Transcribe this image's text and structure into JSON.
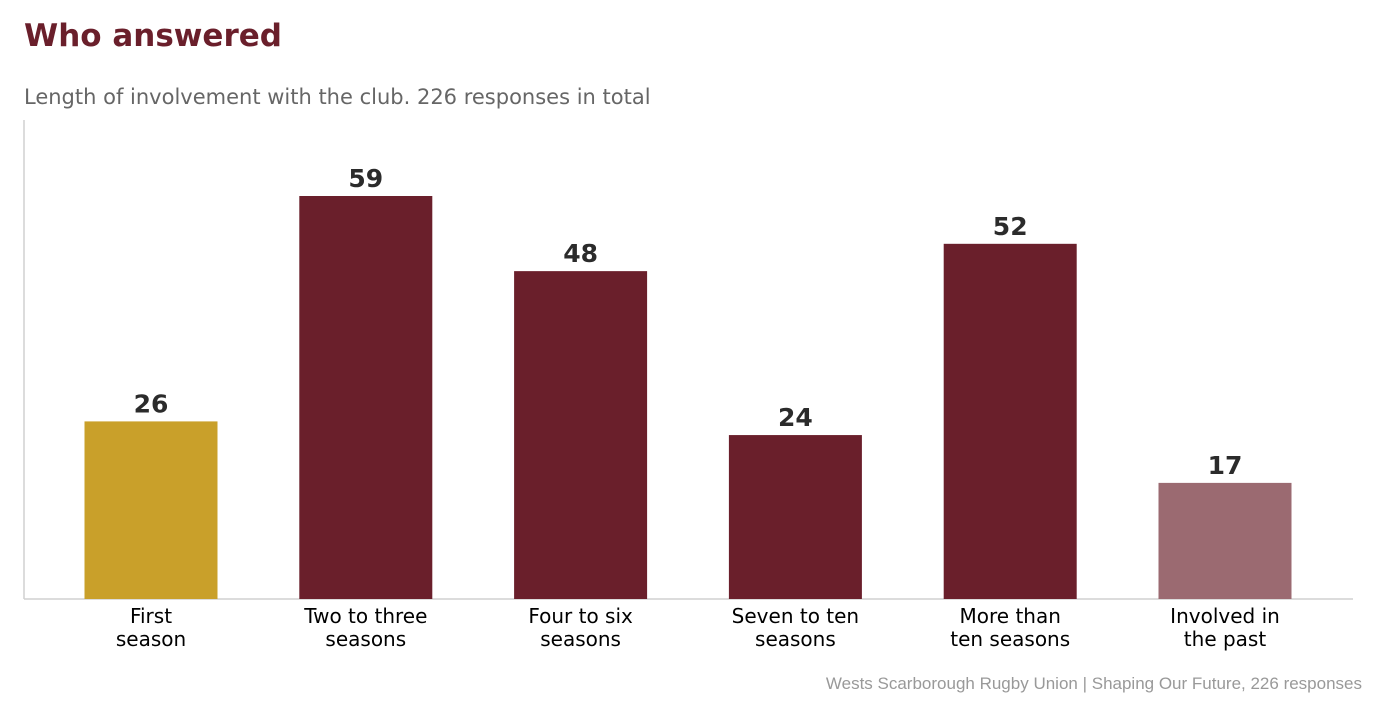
{
  "header": {
    "title": "Who answered",
    "subtitle": "Length of involvement with the club. 226 responses in total"
  },
  "footer": {
    "source": "Wests Scarborough Rugby Union  |  Shaping Our Future, 226 responses"
  },
  "chart_data": {
    "type": "bar",
    "title": "Who answered",
    "subtitle": "Length of involvement with the club. 226 responses in total",
    "xlabel": "",
    "ylabel": "",
    "categories": [
      [
        "First",
        "season"
      ],
      [
        "Two to three",
        "seasons"
      ],
      [
        "Four to six",
        "seasons"
      ],
      [
        "Seven to ten",
        "seasons"
      ],
      [
        "More than",
        "ten seasons"
      ],
      [
        "Involved in",
        "the past"
      ]
    ],
    "values": [
      26,
      59,
      48,
      24,
      52,
      17
    ],
    "colors": [
      "#c9a02a",
      "#6a1f2b",
      "#6a1f2b",
      "#6a1f2b",
      "#6a1f2b",
      "#9b6a71"
    ],
    "ylim": [
      0,
      70
    ],
    "grid": false,
    "legend": "none"
  }
}
